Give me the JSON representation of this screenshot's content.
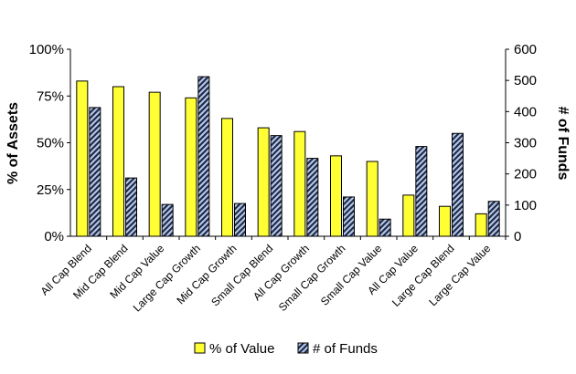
{
  "chart_data": {
    "type": "bar",
    "categories": [
      "All Cap Blend",
      "Mid Cap Blend",
      "Mid Cap Value",
      "Large Cap Growth",
      "Mid Cap Growth",
      "Small Cap Blend",
      "All Cap Growth",
      "Small Cap Growth",
      "Small Cap Value",
      "All Cap Value",
      "Large Cap Blend",
      "Large Cap Value"
    ],
    "series": [
      {
        "name": "% of Value",
        "axis": "left",
        "color": "#ffff33",
        "pattern": "solid",
        "values": [
          83,
          80,
          77,
          74,
          63,
          58,
          56,
          43,
          40,
          22,
          16,
          12
        ]
      },
      {
        "name": "# of Funds",
        "axis": "right",
        "color": "#3a5fa0",
        "pattern": "diagonal-hatch",
        "values": [
          413,
          187,
          102,
          512,
          105,
          323,
          250,
          126,
          55,
          288,
          330,
          112
        ]
      }
    ],
    "ylabel": "% of Assets",
    "ylabel_right": "# of Funds",
    "ylim": [
      0,
      100
    ],
    "ylim_right": [
      0,
      600
    ],
    "yticks": [
      "0%",
      "25%",
      "50%",
      "75%",
      "100%"
    ],
    "yticks_right": [
      "0",
      "100",
      "200",
      "300",
      "400",
      "500",
      "600"
    ],
    "legend_position": "bottom",
    "grid": false
  }
}
